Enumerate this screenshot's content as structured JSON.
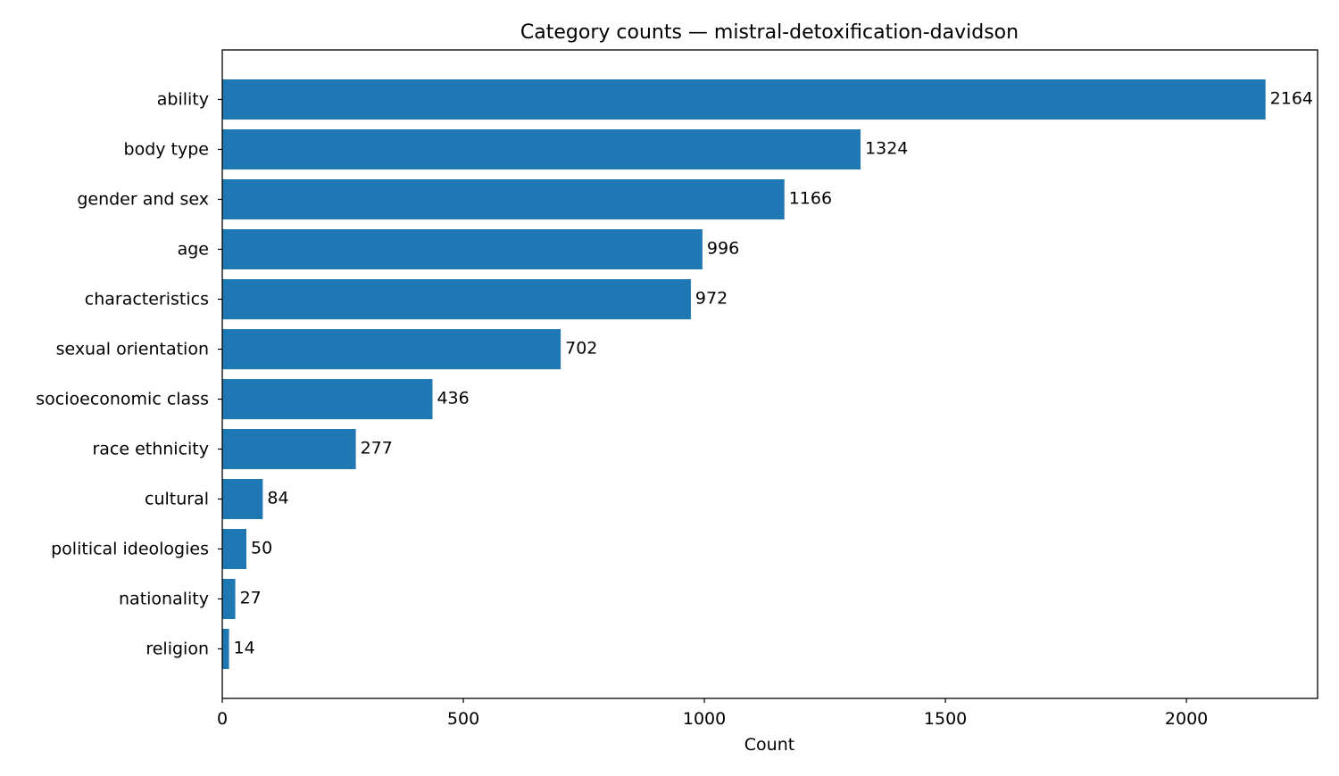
{
  "chart_data": {
    "type": "bar",
    "orientation": "horizontal",
    "title": "Category counts — mistral-detoxification-davidson",
    "xlabel": "Count",
    "ylabel": "",
    "categories": [
      "ability",
      "body type",
      "gender and sex",
      "age",
      "characteristics",
      "sexual orientation",
      "socioeconomic class",
      "race ethnicity",
      "cultural",
      "political ideologies",
      "nationality",
      "religion"
    ],
    "values": [
      2164,
      1324,
      1166,
      996,
      972,
      702,
      436,
      277,
      84,
      50,
      27,
      14
    ],
    "xlim": [
      0,
      2272
    ],
    "xticks": [
      0,
      500,
      1000,
      1500,
      2000
    ],
    "grid": false,
    "bar_color": "#1f77b4"
  }
}
